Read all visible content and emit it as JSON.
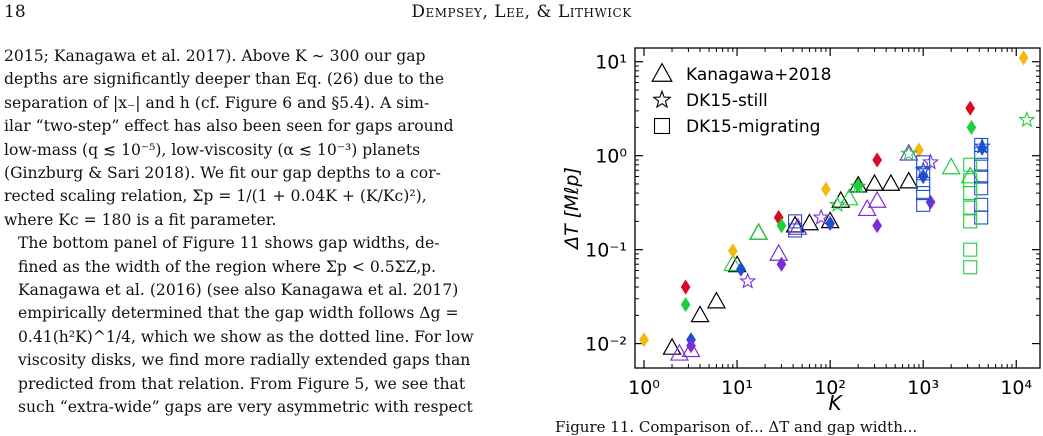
{
  "header": {
    "page_number": "18",
    "running_head": "Dempsey, Lee, & Lithwick"
  },
  "body": {
    "paragraph1_lines": [
      "2015; Kanagawa et al. 2017). Above K ∼ 300 our gap",
      "depths are significantly deeper than Eq. (26) due to the",
      "separation of |x₋| and h (cf. Figure 6 and §5.4). A sim-",
      "ilar “two-step” effect has also been seen for gaps around",
      "low-mass (q ≲ 10⁻⁵), low-viscosity (α ≲ 10⁻³) planets",
      "(Ginzburg & Sari 2018). We fit our gap depths to a cor-",
      "rected scaling relation, Σp = 1/(1 + 0.04K + (K/Kc)²),",
      "where Kc = 180 is a fit parameter."
    ],
    "paragraph2_lines": [
      "The bottom panel of Figure 11 shows gap widths, de-",
      "fined as the width of the region where Σp < 0.5ΣZ,p.",
      "Kanagawa et al. (2016) (see also Kanagawa et al. 2017)",
      "empirically determined that the gap width follows Δg =",
      "0.41(h²K)^1/4, which we show as the dotted line. For low",
      "viscosity disks, we find more radially extended gaps than",
      "predicted from that relation. From Figure 5, we see that",
      "such “extra-wide” gaps are very asymmetric with respect"
    ]
  },
  "caption": {
    "text": "Figure 11. Comparison of... ΔT and gap width..."
  },
  "chart_data": {
    "type": "scatter",
    "xlabel": "K",
    "ylabel": "ΔT [Mℓp]",
    "xscale": "log",
    "yscale": "log",
    "xlim": [
      0.8,
      18000
    ],
    "ylim": [
      0.0055,
      14
    ],
    "x_ticks": [
      "10⁰",
      "10¹",
      "10²",
      "10³",
      "10⁴"
    ],
    "y_ticks": [
      "10⁻²",
      "10⁻¹",
      "10⁰",
      "10¹"
    ],
    "legend_position": "top-left",
    "legend": [
      {
        "marker": "triangle",
        "label": "Kanagawa+2018"
      },
      {
        "marker": "star",
        "label": "DK15-still"
      },
      {
        "marker": "square",
        "label": "DK15-migrating"
      }
    ],
    "colors": {
      "kanagawa": "#000000",
      "c_low": "#f5b80c",
      "c_red": "#d90a1e",
      "c_green": "#1fcf3c",
      "c_blue": "#1f4fd0",
      "c_purple": "#7b2fd6"
    },
    "series": [
      {
        "marker": "triangle",
        "color_key": "kanagawa",
        "points": [
          [
            2,
            0.009
          ],
          [
            4,
            0.02
          ],
          [
            6,
            0.028
          ],
          [
            10,
            0.068
          ],
          [
            17,
            0.15
          ],
          [
            42,
            0.18
          ],
          [
            60,
            0.19
          ],
          [
            100,
            0.2
          ],
          [
            130,
            0.33
          ],
          [
            200,
            0.48
          ],
          [
            300,
            0.5
          ],
          [
            450,
            0.5
          ],
          [
            700,
            0.53
          ]
        ]
      },
      {
        "marker": "triangle",
        "color_key": "c_purple",
        "points": [
          [
            2.4,
            0.0078
          ],
          [
            3.2,
            0.0085
          ],
          [
            28,
            0.09
          ],
          [
            45,
            0.17
          ],
          [
            250,
            0.27
          ],
          [
            320,
            0.33
          ],
          [
            700,
            1.05
          ]
        ]
      },
      {
        "marker": "triangle",
        "color_key": "c_green",
        "points": [
          [
            9,
            0.07
          ],
          [
            17,
            0.15
          ],
          [
            160,
            0.35
          ],
          [
            2000,
            0.75
          ],
          [
            3200,
            0.6
          ]
        ]
      },
      {
        "marker": "diamond-filled",
        "color_key": "c_low",
        "points": [
          [
            1,
            0.011
          ],
          [
            9,
            0.097
          ],
          [
            90,
            0.44
          ],
          [
            900,
            1.15
          ],
          [
            12000,
            11
          ]
        ]
      },
      {
        "marker": "diamond-filled",
        "color_key": "c_red",
        "points": [
          [
            2.8,
            0.04
          ],
          [
            28,
            0.22
          ],
          [
            320,
            0.9
          ],
          [
            3200,
            3.2
          ]
        ]
      },
      {
        "marker": "diamond-filled",
        "color_key": "c_green",
        "points": [
          [
            2.8,
            0.026
          ],
          [
            30,
            0.18
          ],
          [
            200,
            0.48
          ],
          [
            3300,
            2.0
          ]
        ]
      },
      {
        "marker": "diamond-filled",
        "color_key": "c_blue",
        "points": [
          [
            3.2,
            0.011
          ],
          [
            11,
            0.062
          ],
          [
            100,
            0.19
          ],
          [
            1000,
            0.6
          ],
          [
            4300,
            1.2
          ]
        ]
      },
      {
        "marker": "diamond-filled",
        "color_key": "c_purple",
        "points": [
          [
            3.2,
            0.0095
          ],
          [
            30,
            0.07
          ],
          [
            320,
            0.18
          ],
          [
            1200,
            0.32
          ]
        ]
      },
      {
        "marker": "star",
        "color_key": "c_purple",
        "points": [
          [
            13,
            0.046
          ],
          [
            80,
            0.22
          ],
          [
            1200,
            0.85
          ]
        ]
      },
      {
        "marker": "star",
        "color_key": "c_green",
        "points": [
          [
            120,
            0.3
          ],
          [
            200,
            0.47
          ],
          [
            700,
            1.05
          ],
          [
            13000,
            2.4
          ]
        ]
      },
      {
        "marker": "star",
        "color_key": "c_blue",
        "points": [
          [
            1000,
            0.7
          ],
          [
            4300,
            1.25
          ]
        ]
      },
      {
        "marker": "square",
        "color_key": "c_blue",
        "points": [
          [
            42,
            0.16
          ],
          [
            42,
            0.2
          ],
          [
            1000,
            0.3
          ],
          [
            1000,
            0.4
          ],
          [
            1000,
            0.5
          ],
          [
            1000,
            0.65
          ],
          [
            1000,
            0.85
          ],
          [
            4200,
            0.22
          ],
          [
            4200,
            0.3
          ],
          [
            4200,
            0.45
          ],
          [
            4200,
            0.6
          ],
          [
            4200,
            0.8
          ],
          [
            4200,
            1.05
          ],
          [
            4200,
            1.3
          ]
        ]
      },
      {
        "marker": "square",
        "color_key": "c_green",
        "points": [
          [
            3200,
            0.065
          ],
          [
            3200,
            0.1
          ],
          [
            3200,
            0.2
          ],
          [
            3200,
            0.28
          ],
          [
            3200,
            0.4
          ],
          [
            3200,
            0.55
          ],
          [
            3200,
            0.8
          ]
        ]
      }
    ]
  }
}
